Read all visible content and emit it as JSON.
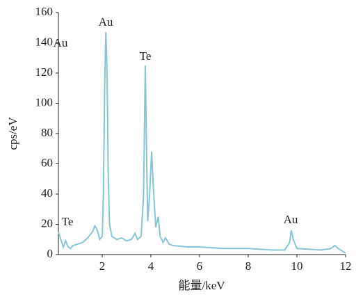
{
  "chart_data": {
    "type": "line",
    "x_label": "能量/keV",
    "y_label": "cps/eV",
    "xlim": [
      0.2,
      12
    ],
    "ylim": [
      0,
      160
    ],
    "xticks": [
      2,
      4,
      6,
      8,
      10,
      12
    ],
    "yticks": [
      0,
      20,
      40,
      60,
      80,
      100,
      120,
      140,
      160
    ],
    "annotations": [
      "Au",
      "Au",
      "Te",
      "Te",
      "Au"
    ],
    "x": [
      0.2,
      0.3,
      0.4,
      0.5,
      0.6,
      0.7,
      0.8,
      1.0,
      1.2,
      1.4,
      1.6,
      1.7,
      1.8,
      1.9,
      2.0,
      2.05,
      2.1,
      2.15,
      2.2,
      2.25,
      2.3,
      2.4,
      2.6,
      2.8,
      3.0,
      3.2,
      3.35,
      3.45,
      3.6,
      3.7,
      3.77,
      3.82,
      3.87,
      3.95,
      4.03,
      4.1,
      4.2,
      4.3,
      4.38,
      4.5,
      4.6,
      4.75,
      4.9,
      5.5,
      6,
      7,
      8,
      9,
      9.5,
      9.7,
      9.77,
      9.85,
      10,
      11,
      11.4,
      11.55,
      11.7,
      12
    ],
    "series": [
      {
        "color": "#86c5d8",
        "values": [
          15,
          10,
          5,
          9,
          5,
          4,
          6,
          7,
          8,
          11,
          15,
          19,
          16,
          10,
          12,
          40,
          110,
          147,
          120,
          50,
          20,
          12,
          10,
          11,
          9,
          10,
          14,
          10,
          12,
          40,
          125,
          70,
          22,
          40,
          68,
          45,
          18,
          25,
          12,
          8,
          11,
          7,
          6,
          5,
          5,
          4,
          4,
          3,
          3,
          8,
          16,
          10,
          4,
          3,
          4,
          6,
          4,
          1
        ]
      }
    ]
  }
}
